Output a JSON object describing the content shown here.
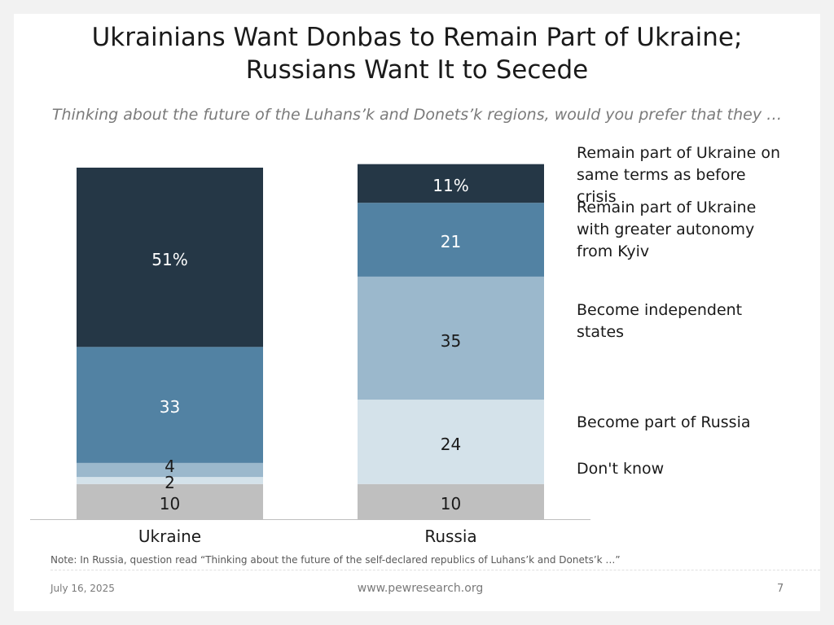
{
  "header": {
    "title_line1": "Ukrainians Want Donbas to Remain Part of Ukraine;",
    "title_line2": "Russians Want It to Secede",
    "subtitle": "Thinking about the future of the Luhans’k and Donets’k regions, would you prefer that they …"
  },
  "chart_data": {
    "type": "bar",
    "stacked": true,
    "categories": [
      "Ukraine",
      "Russia"
    ],
    "series": [
      {
        "name": "Don't  know",
        "values": [
          10,
          10
        ],
        "labels": [
          "10",
          "10"
        ],
        "color": "#bfbfbf",
        "label_color": "#1a1a1a"
      },
      {
        "name": "Become part of Russia",
        "values": [
          2,
          24
        ],
        "labels": [
          "2",
          "24"
        ],
        "color": "#d4e2ea",
        "label_color": "#1a1a1a"
      },
      {
        "name": "Become independent states",
        "values": [
          4,
          35
        ],
        "labels": [
          "4",
          "35"
        ],
        "color": "#9bb8cc",
        "label_color": "#1a1a1a"
      },
      {
        "name": "Remain part of Ukraine with greater autonomy from Kyiv",
        "values": [
          33,
          21
        ],
        "labels": [
          "33",
          "21"
        ],
        "color": "#5282a3",
        "label_color": "#ffffff"
      },
      {
        "name": "Remain part of Ukraine on same terms as before crisis",
        "values": [
          51,
          11
        ],
        "labels": [
          "51%",
          "11%"
        ],
        "color": "#253746",
        "label_color": "#ffffff"
      }
    ],
    "legend_placement": "right",
    "grid": false
  },
  "note": "Note: In Russia, question read “Thinking about the future of the self-declared republics of Luhans’k and Donets’k …”",
  "footer": {
    "date": "July 16, 2025",
    "url": "www.pewresearch.org",
    "page": "7"
  }
}
